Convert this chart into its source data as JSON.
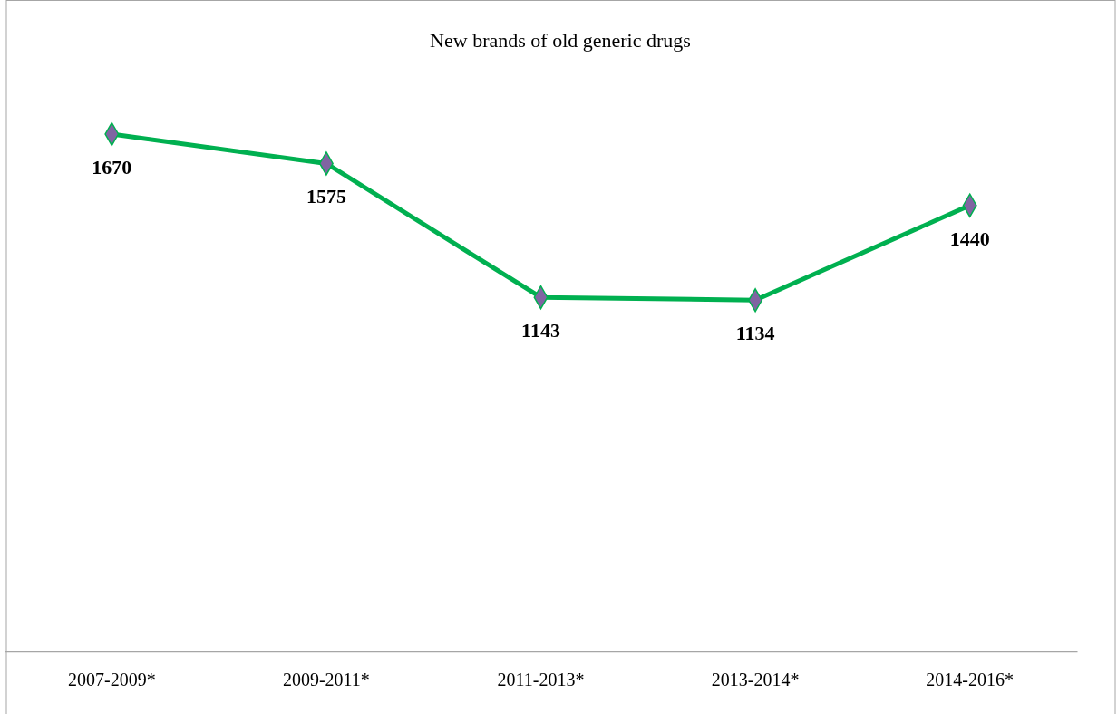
{
  "chart_data": {
    "type": "line",
    "title": "New brands of old generic drugs",
    "categories": [
      "2007-2009*",
      "2009-2011*",
      "2011-2013*",
      "2013-2014*",
      "2014-2016*"
    ],
    "series": [
      {
        "color": "#00b050",
        "values": [
          1670,
          1575,
          1143,
          1134,
          1440
        ]
      }
    ],
    "tick_labels": "x",
    "data_labels": true,
    "marker": "diamond",
    "line_style": "solid"
  }
}
